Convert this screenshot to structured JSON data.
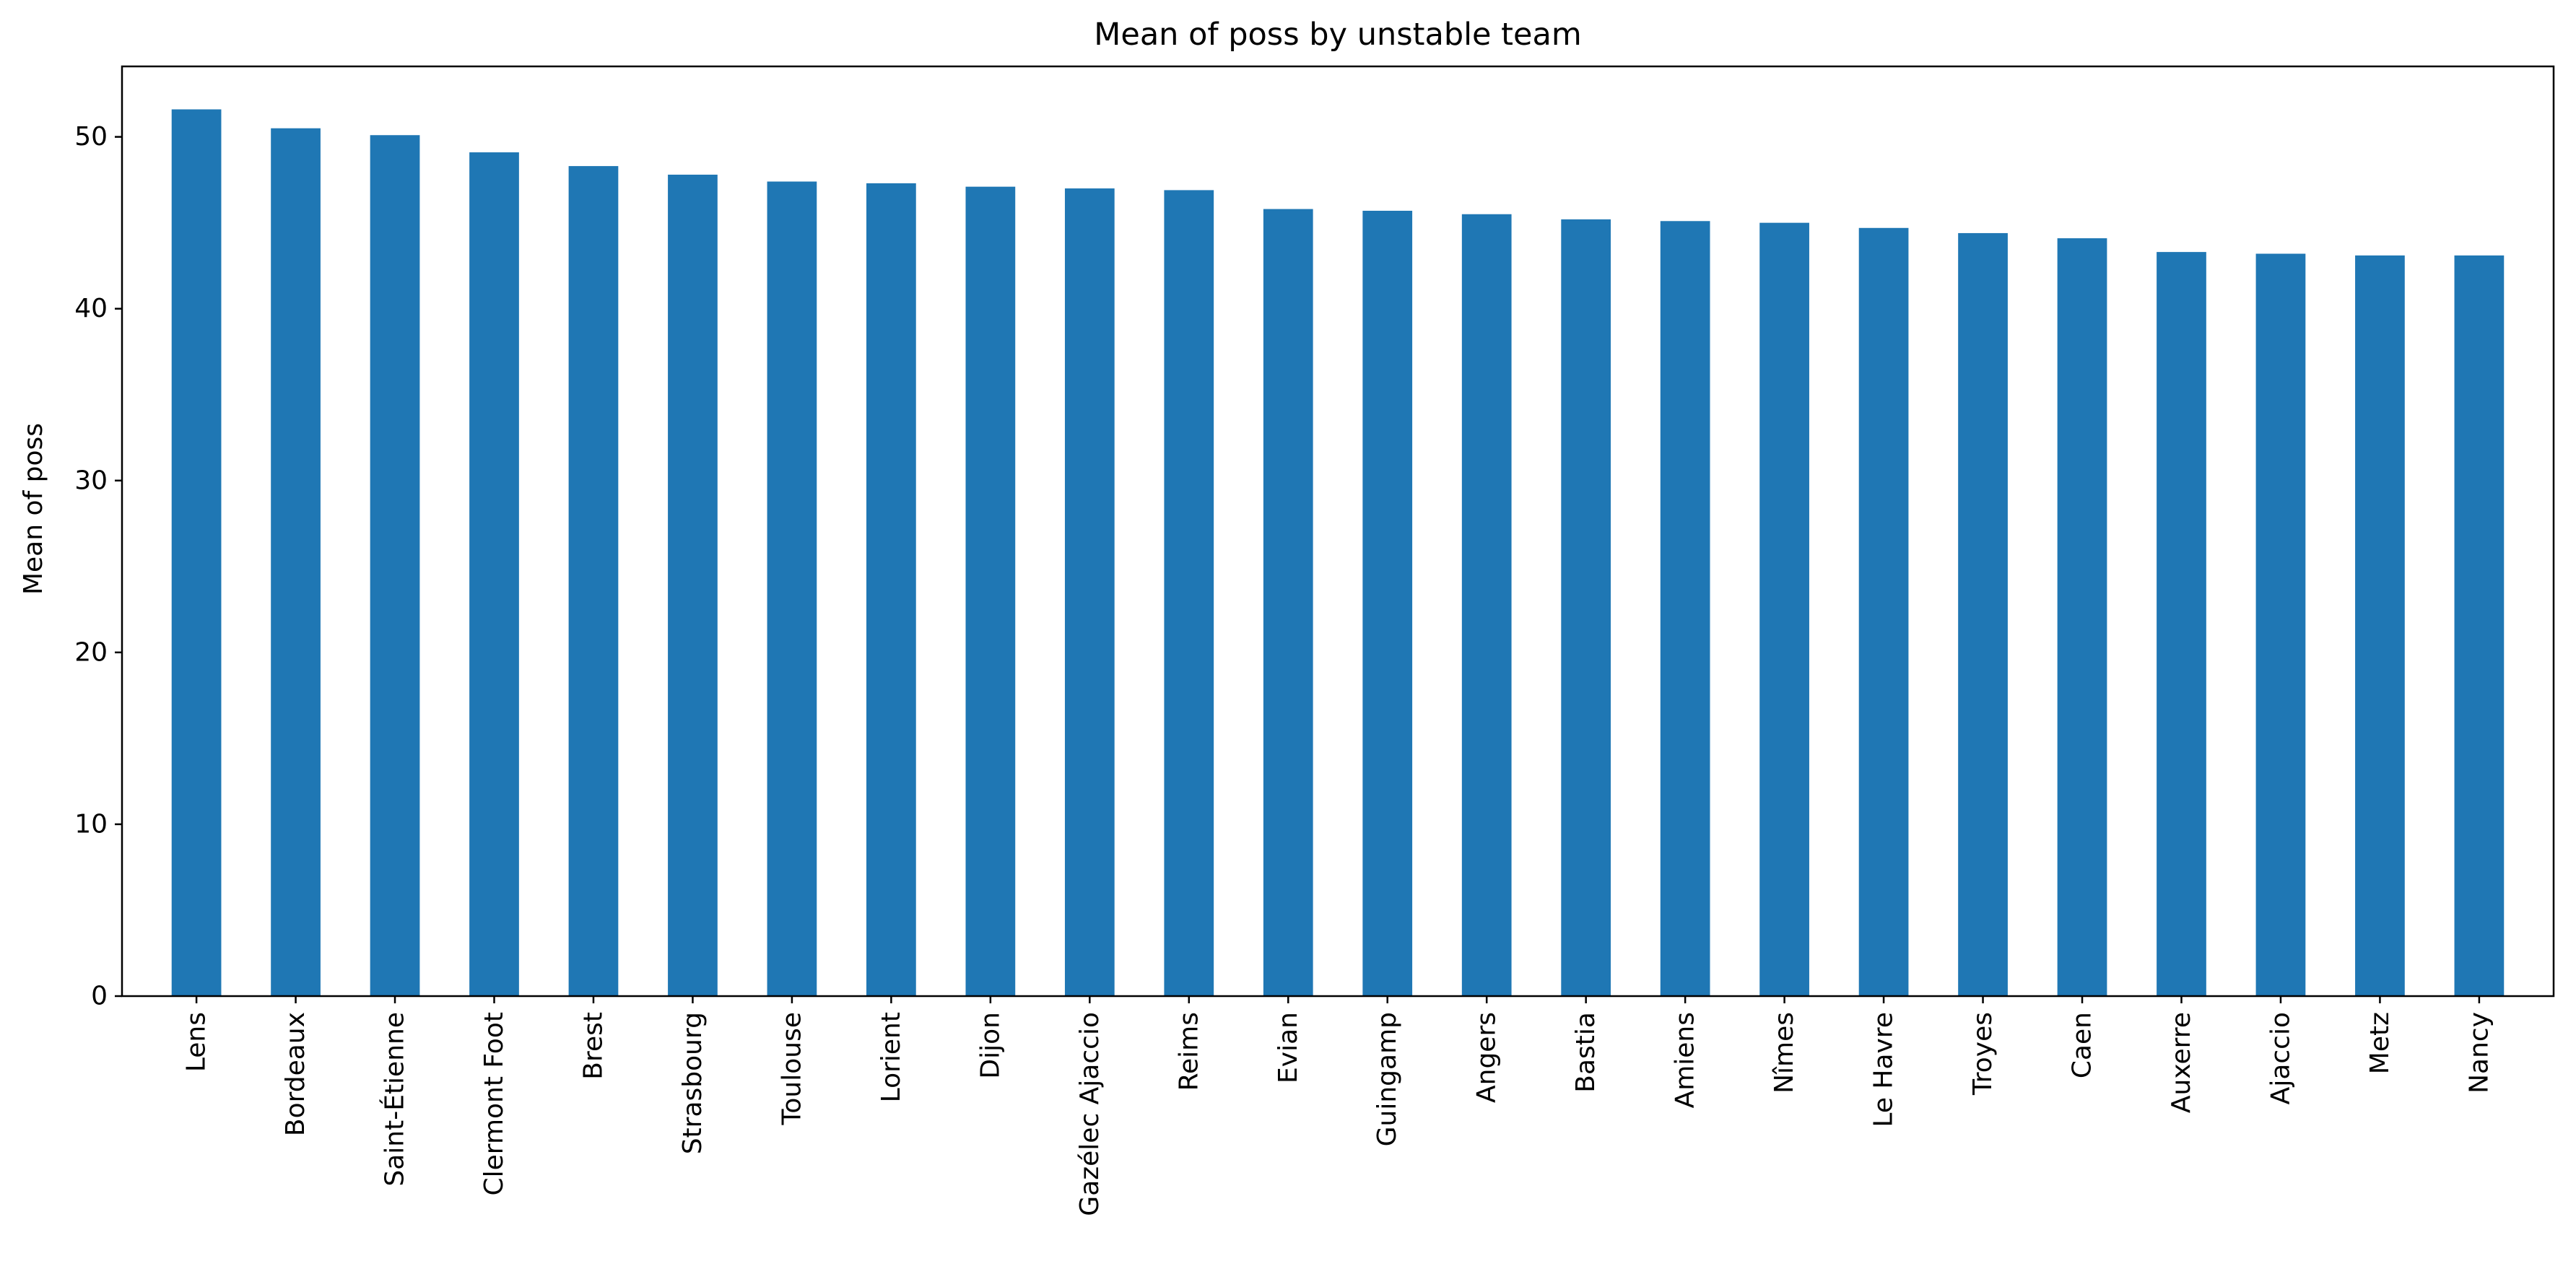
{
  "chart_data": {
    "type": "bar",
    "title": "Mean of poss by unstable team",
    "xlabel": "",
    "ylabel": "Mean of poss",
    "ylim": [
      0,
      54.1
    ],
    "yticks": [
      0,
      10,
      20,
      30,
      40,
      50
    ],
    "grid": false,
    "legend": "none",
    "bar_color": "#1f77b4",
    "categories": [
      "Lens",
      "Bordeaux",
      "Saint-Étienne",
      "Clermont Foot",
      "Brest",
      "Strasbourg",
      "Toulouse",
      "Lorient",
      "Dijon",
      "Gazélec Ajaccio",
      "Reims",
      "Evian",
      "Guingamp",
      "Angers",
      "Bastia",
      "Amiens",
      "Nîmes",
      "Le Havre",
      "Troyes",
      "Caen",
      "Auxerre",
      "Ajaccio",
      "Metz",
      "Nancy"
    ],
    "values": [
      51.6,
      50.5,
      50.1,
      49.1,
      48.3,
      47.8,
      47.4,
      47.3,
      47.1,
      47.0,
      46.9,
      45.8,
      45.7,
      45.5,
      45.2,
      45.1,
      45.0,
      44.7,
      44.4,
      44.1,
      43.3,
      43.2,
      43.1,
      43.1
    ]
  }
}
